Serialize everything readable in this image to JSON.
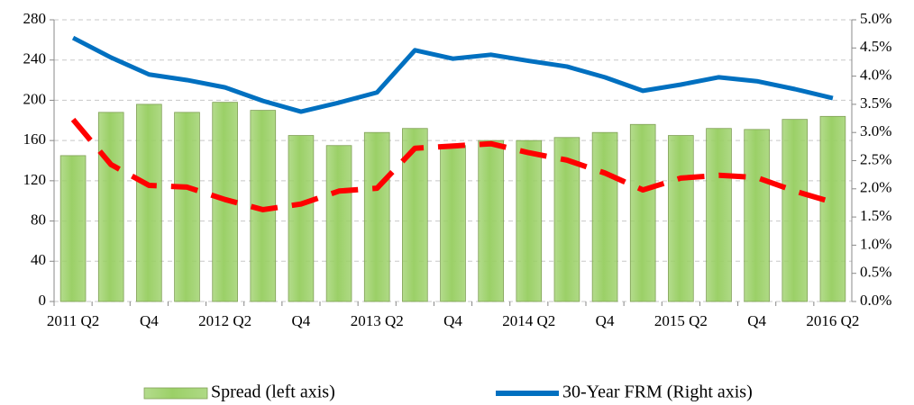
{
  "chart_data": {
    "type": "bar-line",
    "categories": [
      "2011 Q2",
      null,
      "Q4",
      null,
      "2012 Q2",
      null,
      "Q4",
      null,
      "2013 Q2",
      null,
      "Q4",
      null,
      "2014 Q2",
      null,
      "Q4",
      null,
      "2015 Q2",
      null,
      "Q4",
      null,
      "2016 Q2"
    ],
    "series": [
      {
        "name": "Spread (left axis)",
        "kind": "bar",
        "color": "#9bd067",
        "values": [
          145,
          188,
          196,
          188,
          198,
          190,
          165,
          155,
          168,
          172,
          155,
          160,
          160,
          163,
          168,
          176,
          165,
          172,
          171,
          181,
          184
        ]
      },
      {
        "name": "30-Year FRM (Right axis)",
        "kind": "line",
        "axis": "y2",
        "color": "#0070c0",
        "values": [
          4.68,
          4.33,
          4.03,
          3.93,
          3.8,
          3.56,
          3.37,
          3.53,
          3.71,
          4.46,
          4.31,
          4.38,
          4.27,
          4.17,
          3.98,
          3.74,
          3.85,
          3.98,
          3.91,
          3.77,
          3.61
        ]
      },
      {
        "kind": "line",
        "axis": "y2",
        "color": "#ff0000",
        "dashed": true,
        "values": [
          3.23,
          2.43,
          2.06,
          2.03,
          1.81,
          1.63,
          1.73,
          1.96,
          2.01,
          2.72,
          2.76,
          2.8,
          2.64,
          2.51,
          2.28,
          1.98,
          2.19,
          2.24,
          2.2,
          1.96,
          1.76
        ]
      }
    ],
    "ylim": [
      0,
      280
    ],
    "yticks": [
      0,
      40,
      80,
      120,
      160,
      200,
      240,
      280
    ],
    "y2lim": [
      0,
      5
    ],
    "y2ticks": [
      {
        "value": 0,
        "label": "0.0%"
      },
      {
        "value": 0.5,
        "label": "0.5%"
      },
      {
        "value": 1,
        "label": "1.0%"
      },
      {
        "value": 1.5,
        "label": "1.5%"
      },
      {
        "value": 2,
        "label": "2.0%"
      },
      {
        "value": 2.5,
        "label": "2.5%"
      },
      {
        "value": 3,
        "label": "3.0%"
      },
      {
        "value": 3.5,
        "label": "3.5%"
      },
      {
        "value": 4,
        "label": "4.0%"
      },
      {
        "value": 4.5,
        "label": "4.5%"
      },
      {
        "value": 5,
        "label": "5.0%"
      }
    ],
    "grid": true,
    "legend": "bottom"
  }
}
